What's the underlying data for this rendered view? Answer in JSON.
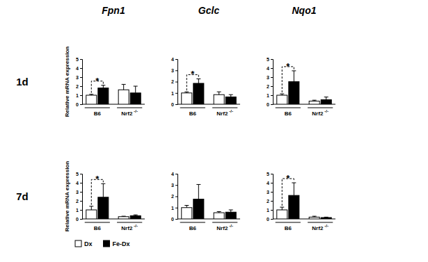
{
  "chart_data": [
    {
      "type": "bar",
      "title": "Fpn1",
      "row_label": "1d",
      "y_label": "Relative mRNA expression",
      "categories": [
        "B6",
        "Nrf2"
      ],
      "category_superscripts": [
        null,
        "-/-"
      ],
      "series": [
        {
          "name": "Dx",
          "color": "#ffffff",
          "values": [
            1.0,
            1.6
          ],
          "errors": [
            0.1,
            0.6
          ]
        },
        {
          "name": "Fe-Dx",
          "color": "#000000",
          "values": [
            1.8,
            1.25
          ],
          "errors": [
            0.3,
            0.75
          ]
        }
      ],
      "ylim": [
        0,
        5
      ],
      "yticks": [
        0,
        1,
        2,
        3,
        4,
        5
      ],
      "annotations": [
        {
          "text": "*",
          "category": 0
        }
      ]
    },
    {
      "type": "bar",
      "title": "Gclc",
      "categories": [
        "B6",
        "Nrf2"
      ],
      "category_superscripts": [
        null,
        "-/-"
      ],
      "series": [
        {
          "color": "#ffffff",
          "values": [
            1.0,
            0.85
          ],
          "errors": [
            0.1,
            0.25
          ]
        },
        {
          "color": "#000000",
          "values": [
            1.85,
            0.65
          ],
          "errors": [
            0.4,
            0.2
          ]
        }
      ],
      "ylim": [
        0,
        4
      ],
      "yticks": [
        0,
        1,
        2,
        3,
        4
      ],
      "annotations": [
        {
          "text": "*",
          "category": 0
        }
      ]
    },
    {
      "type": "bar",
      "title": "Nqo1",
      "categories": [
        "B6",
        "Nrf2"
      ],
      "category_superscripts": [
        null,
        "-/-"
      ],
      "series": [
        {
          "color": "#ffffff",
          "values": [
            1.0,
            0.35
          ],
          "errors": [
            0.15,
            0.1
          ]
        },
        {
          "color": "#000000",
          "values": [
            2.5,
            0.5
          ],
          "errors": [
            1.2,
            0.3
          ]
        }
      ],
      "ylim": [
        0,
        5
      ],
      "yticks": [
        0,
        1,
        2,
        3,
        4,
        5
      ],
      "annotations": [
        {
          "text": "*",
          "category": 0
        }
      ]
    },
    {
      "type": "bar",
      "row_label": "7d",
      "y_label": "Relative mRNA expression",
      "categories": [
        "B6",
        "Nrf2"
      ],
      "category_superscripts": [
        null,
        "-/-"
      ],
      "series": [
        {
          "color": "#ffffff",
          "values": [
            1.0,
            0.25
          ],
          "errors": [
            0.4,
            0.05
          ]
        },
        {
          "color": "#000000",
          "values": [
            2.4,
            0.35
          ],
          "errors": [
            1.5,
            0.1
          ]
        }
      ],
      "ylim": [
        0,
        5
      ],
      "yticks": [
        0,
        1,
        2,
        3,
        4,
        5
      ],
      "annotations": [
        {
          "text": "*",
          "category": 0
        }
      ]
    },
    {
      "type": "bar",
      "categories": [
        "B6",
        "Nrf2"
      ],
      "category_superscripts": [
        null,
        "-/-"
      ],
      "series": [
        {
          "color": "#ffffff",
          "values": [
            1.0,
            0.55
          ],
          "errors": [
            0.2,
            0.1
          ]
        },
        {
          "color": "#000000",
          "values": [
            1.75,
            0.6
          ],
          "errors": [
            1.3,
            0.2
          ]
        }
      ],
      "ylim": [
        0,
        4
      ],
      "yticks": [
        0,
        1,
        2,
        3,
        4
      ]
    },
    {
      "type": "bar",
      "categories": [
        "B6",
        "Nrf2"
      ],
      "category_superscripts": [
        null,
        "-/-"
      ],
      "series": [
        {
          "color": "#ffffff",
          "values": [
            1.0,
            0.2
          ],
          "errors": [
            0.3,
            0.1
          ]
        },
        {
          "color": "#000000",
          "values": [
            2.6,
            0.15
          ],
          "errors": [
            1.4,
            0.05
          ]
        }
      ],
      "ylim": [
        0,
        5
      ],
      "yticks": [
        0,
        1,
        2,
        3,
        4,
        5
      ],
      "annotations": [
        {
          "text": "*",
          "category": 0
        }
      ]
    }
  ]
}
